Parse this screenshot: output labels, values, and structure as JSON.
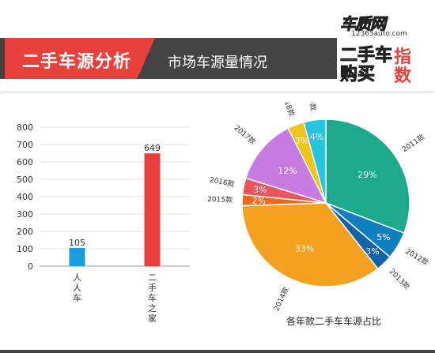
{
  "header": {
    "title": "二手车源分析",
    "subtitle": "市场车源量情况"
  },
  "logo": {
    "site": "车质网",
    "url": "12365auto.com",
    "line1": "二手车",
    "line2": "购买",
    "tag1": "指",
    "tag2": "数"
  },
  "chart_data": [
    {
      "type": "bar",
      "categories": [
        "人人车",
        "二手车之家"
      ],
      "values": [
        105,
        649
      ],
      "ylim": [
        0,
        800
      ],
      "yticks": [
        0,
        100,
        200,
        300,
        400,
        500,
        600,
        700,
        800
      ],
      "grid": true,
      "colors": [
        "#1a9be0",
        "#e8403a"
      ]
    },
    {
      "type": "pie",
      "title": "各年款二手车车源占比",
      "slices": [
        {
          "label": "2011款",
          "value": 29,
          "display": "29%",
          "color": "#1bab8c"
        },
        {
          "label": "2012款",
          "value": 5,
          "display": "5%",
          "color": "#0f7fbf"
        },
        {
          "label": "2013款",
          "value": 3,
          "display": "3%",
          "color": "#1463a8"
        },
        {
          "label": "2014款",
          "value": 33,
          "display": "33%",
          "color": "#f4a020"
        },
        {
          "label": "2015款",
          "value": 2,
          "display": "2%",
          "color": "#ee6a1a"
        },
        {
          "label": "2016款",
          "value": 3,
          "display": "3%",
          "color": "#e8555c"
        },
        {
          "label": "2017款",
          "value": 12,
          "display": "12%",
          "color": "#c77be0"
        },
        {
          "label": "2018款",
          "value": 3,
          "display": "3%",
          "color": "#f0c419"
        },
        {
          "label": "2019款",
          "value": 4,
          "display": "4%",
          "color": "#25c4df"
        }
      ]
    }
  ]
}
